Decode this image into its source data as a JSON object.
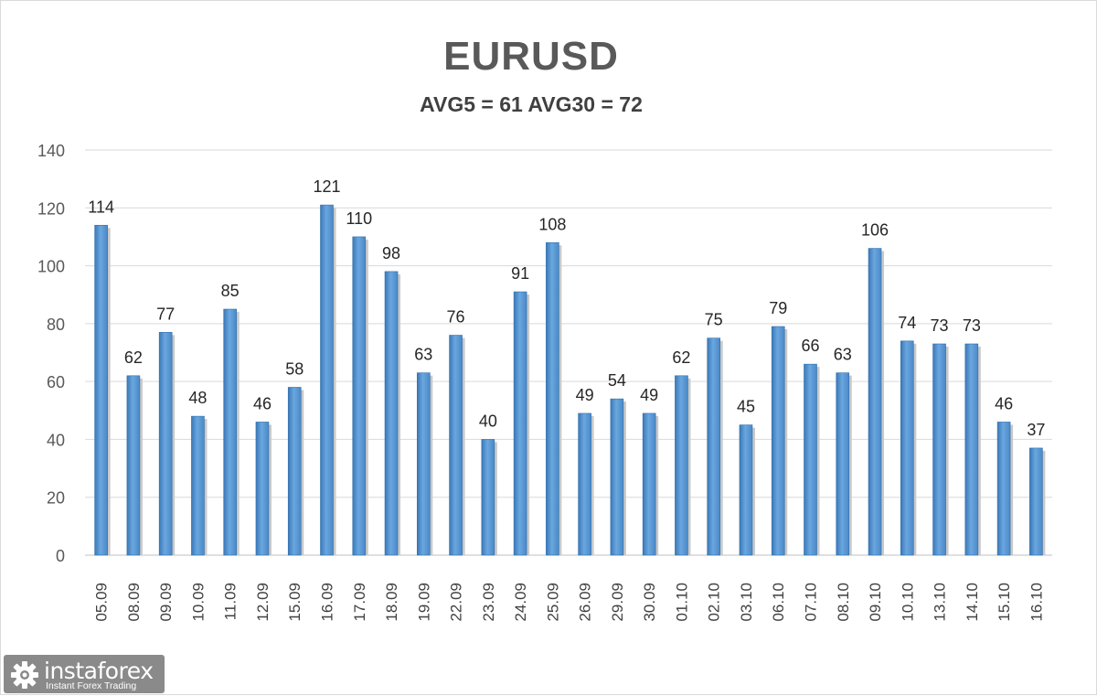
{
  "chart_data": {
    "type": "bar",
    "title": "EURUSD",
    "subtitle": "AVG5 = 61 AVG30 = 72",
    "categories": [
      "05.09",
      "08.09",
      "09.09",
      "10.09",
      "11.09",
      "12.09",
      "15.09",
      "16.09",
      "17.09",
      "18.09",
      "19.09",
      "22.09",
      "23.09",
      "24.09",
      "25.09",
      "26.09",
      "29.09",
      "30.09",
      "01.10",
      "02.10",
      "03.10",
      "06.10",
      "07.10",
      "08.10",
      "09.10",
      "10.10",
      "13.10",
      "14.10",
      "15.10",
      "16.10"
    ],
    "values": [
      114,
      62,
      77,
      48,
      85,
      46,
      58,
      121,
      110,
      98,
      63,
      76,
      40,
      91,
      108,
      49,
      54,
      49,
      62,
      75,
      45,
      79,
      66,
      63,
      106,
      74,
      73,
      73,
      46,
      37
    ],
    "ylim": [
      0,
      140
    ],
    "yticks": [
      0,
      20,
      40,
      60,
      80,
      100,
      120,
      140
    ],
    "grid": true,
    "data_labels": true,
    "bar_color": "#5b9bd5",
    "xlabel": "",
    "ylabel": ""
  },
  "brand": {
    "name": "instaforex",
    "tagline": "Instant Forex Trading"
  }
}
